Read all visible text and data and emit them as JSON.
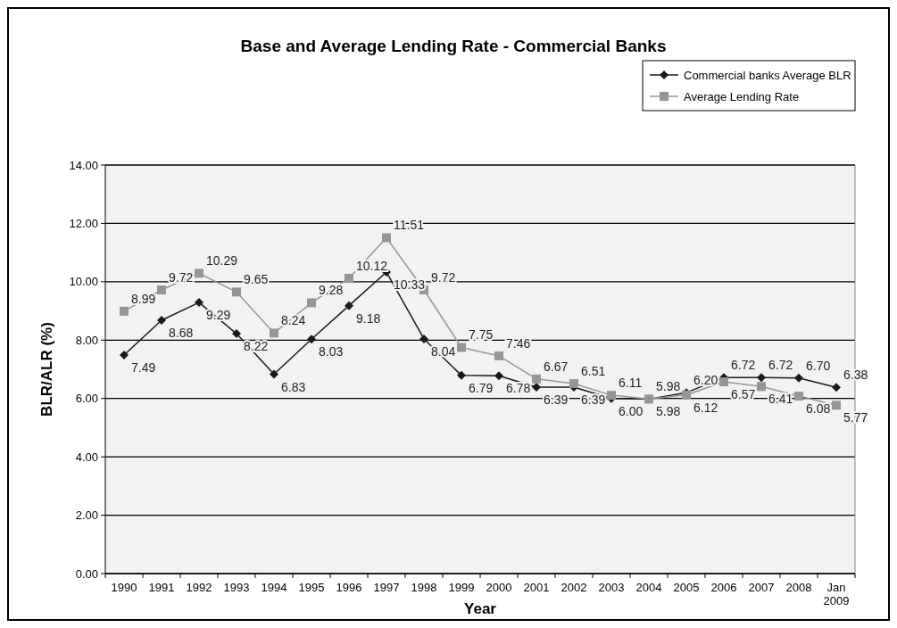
{
  "chart_data": {
    "type": "line",
    "title": "Base and Average Lending Rate - Commercial Banks",
    "xlabel": "Year",
    "ylabel": "BLR/ALR (%)",
    "categories": [
      "1990",
      "1991",
      "1992",
      "1993",
      "1994",
      "1995",
      "1996",
      "1997",
      "1998",
      "1999",
      "2000",
      "2001",
      "2002",
      "2003",
      "2004",
      "2005",
      "2006",
      "2007",
      "2008",
      "Jan 2009"
    ],
    "series": [
      {
        "name": "Commercial banks Average BLR",
        "color": "#1a1a1a",
        "marker": "diamond",
        "values": [
          7.49,
          8.68,
          9.29,
          8.22,
          6.83,
          8.03,
          9.18,
          10.33,
          8.04,
          6.79,
          6.78,
          6.39,
          6.39,
          6.0,
          5.98,
          6.2,
          6.72,
          6.72,
          6.7,
          6.38
        ],
        "value_labels": [
          "7.49",
          "8.68",
          "9.29",
          "8.22",
          "6.83",
          "8.03",
          "9.18",
          "10.33",
          "8.04",
          "6.79",
          "6.78",
          "6.39",
          "6.39",
          "6.00",
          "5.98",
          "6.20",
          "6.72",
          "6.72",
          "6.70",
          "6.38"
        ]
      },
      {
        "name": "Average Lending Rate",
        "color": "#969696",
        "marker": "square",
        "values": [
          8.99,
          9.72,
          10.29,
          9.65,
          8.24,
          9.28,
          10.12,
          11.51,
          9.72,
          7.75,
          7.46,
          6.67,
          6.51,
          6.11,
          5.98,
          6.12,
          6.57,
          6.41,
          6.08,
          5.77
        ],
        "value_labels": [
          "8.99",
          "9.72",
          "10.29",
          "9.65",
          "8.24",
          "9.28",
          "10.12",
          "11.51",
          "9.72",
          "7.75",
          "7.46",
          "6.67",
          "6.51",
          "6.11",
          "5.98",
          "6.12",
          "6.57",
          "6.41",
          "6.08",
          "5.77"
        ]
      }
    ],
    "ylim": [
      0,
      14
    ],
    "yticks": [
      {
        "value": 0,
        "label": "0.00"
      },
      {
        "value": 2,
        "label": "2.00"
      },
      {
        "value": 4,
        "label": "4.00"
      },
      {
        "value": 6,
        "label": "6.00"
      },
      {
        "value": 8,
        "label": "8.00"
      },
      {
        "value": 10,
        "label": "10.00"
      },
      {
        "value": 12,
        "label": "12.00"
      },
      {
        "value": 14,
        "label": "14.00"
      }
    ],
    "grid": "y",
    "legend": "top right",
    "line_style": "solid"
  }
}
